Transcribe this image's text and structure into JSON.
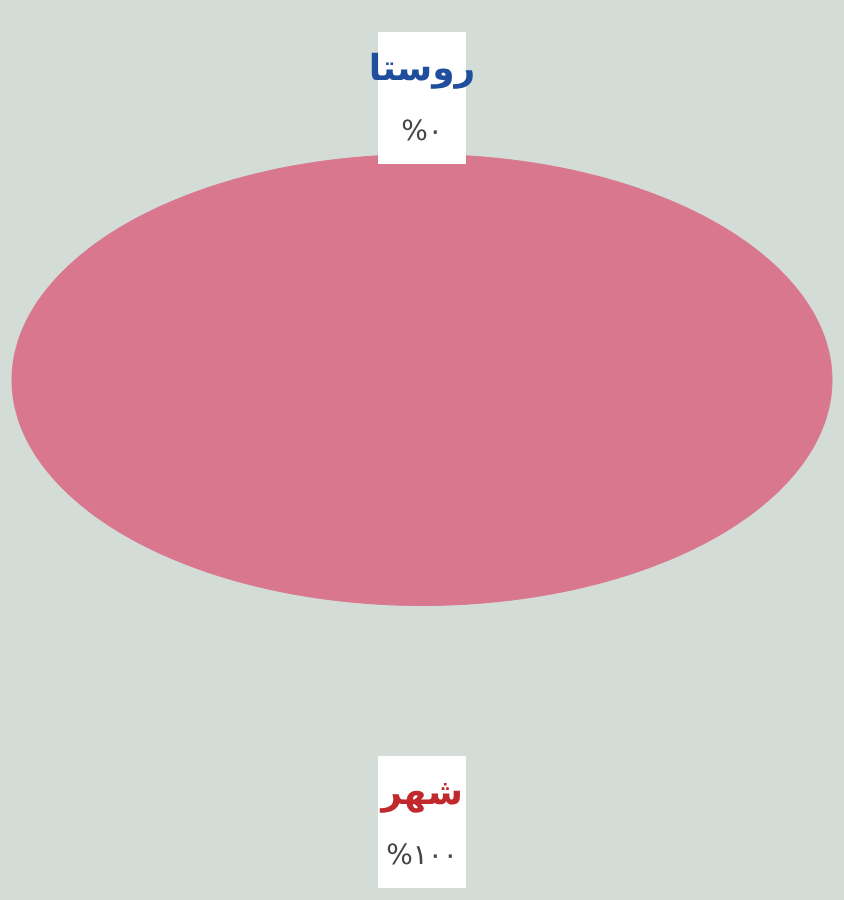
{
  "chart_data": {
    "type": "pie",
    "categories": [
      "روستا",
      "شهر"
    ],
    "values": [
      0,
      100
    ],
    "colors": [
      "#4f81bd",
      "#d9778f"
    ],
    "value_labels": [
      "%٠",
      "%١٠٠"
    ]
  }
}
